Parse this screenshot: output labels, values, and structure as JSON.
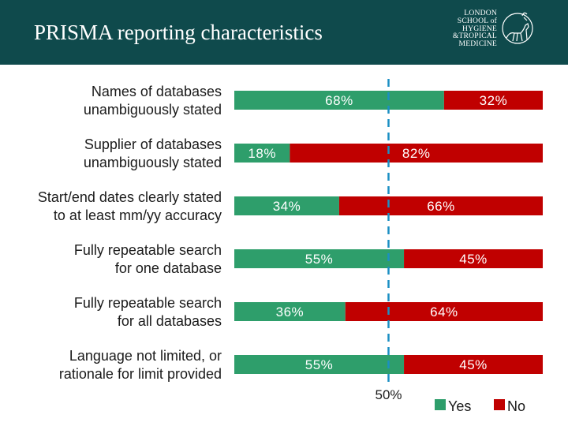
{
  "header": {
    "title": "PRISMA reporting characteristics",
    "logo_lines": [
      "LONDON",
      "SCHOOL of",
      "HYGIENE",
      "&TROPICAL",
      "MEDICINE"
    ],
    "logo_icon": "lshtm-crest-icon",
    "background_color": "#0f4a4c"
  },
  "chart_data": {
    "type": "bar",
    "orientation": "horizontal-stacked-100",
    "title": "",
    "xlabel": "",
    "ylabel": "",
    "xlim": [
      0,
      100
    ],
    "reference_line": {
      "value": 50,
      "label": "50%",
      "style": "dashed",
      "color": "#1b8fc4"
    },
    "categories": [
      [
        "Names of databases",
        "unambiguously stated"
      ],
      [
        "Supplier of databases",
        "unambiguously stated"
      ],
      [
        "Start/end dates clearly stated",
        "to at least mm/yy accuracy"
      ],
      [
        "Fully repeatable search",
        "for one database"
      ],
      [
        "Fully repeatable search",
        "for all databases"
      ],
      [
        "Language not limited, or",
        "rationale for limit provided"
      ]
    ],
    "series": [
      {
        "name": "Yes",
        "color": "#2e9e6b",
        "values": [
          68,
          18,
          34,
          55,
          36,
          55
        ],
        "labels": [
          "68%",
          "18%",
          "34%",
          "55%",
          "36%",
          "55%"
        ]
      },
      {
        "name": "No",
        "color": "#c00000",
        "values": [
          32,
          82,
          66,
          45,
          64,
          45
        ],
        "labels": [
          "32%",
          "82%",
          "66%",
          "45%",
          "64%",
          "45%"
        ]
      }
    ],
    "legend_position": "bottom-right"
  }
}
